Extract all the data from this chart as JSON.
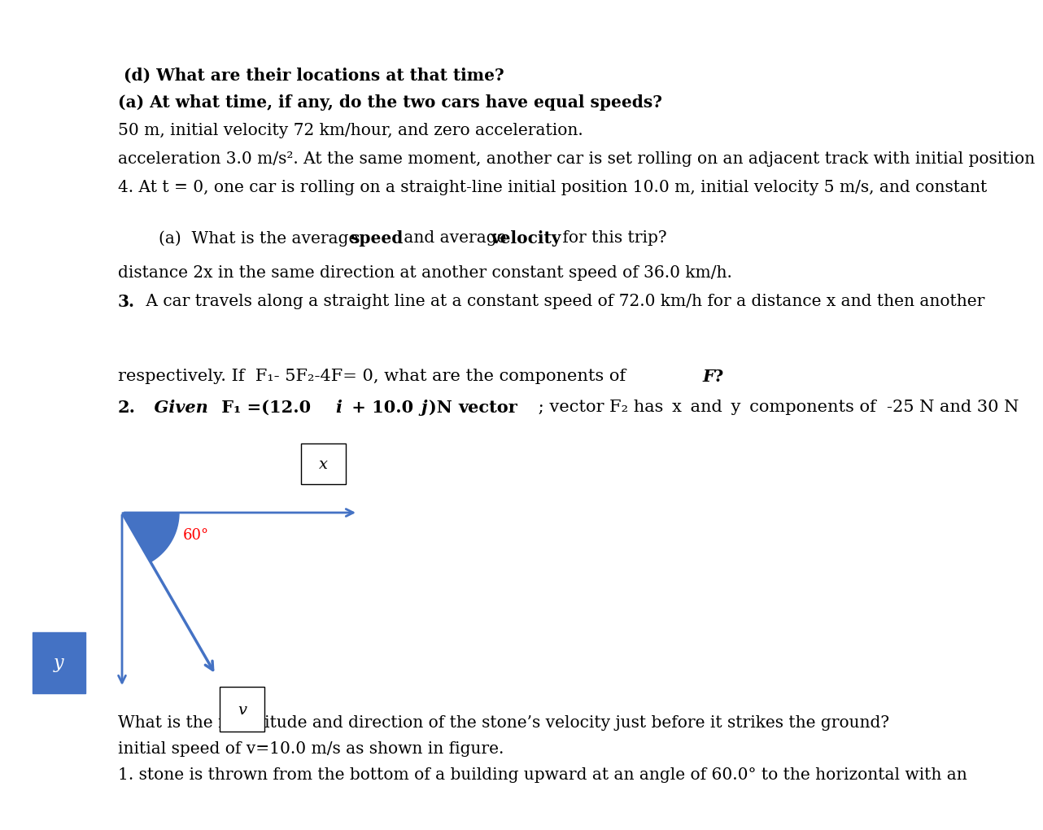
{
  "background_color": "#ffffff",
  "fig_width": 12.0,
  "fig_height": 10.01,
  "dpi": 100,
  "arrow_color": "#4472c4",
  "y_label_box_color": "#4472c4",
  "y_label_text_color": "#ffffff",
  "angle_label_color": "#ff0000",
  "q1_line1": "1. stone is thrown from the bottom of a building upward at an angle of 60.0° to the horizontal with an",
  "q1_line2": "initial speed of v=10.0 m/s as shown in figure.",
  "q1_line3": "What is the magnitude and direction of the stone’s velocity just before it strikes the ground?",
  "q2_line1_pre": "2.  ",
  "q2_line1_given": "Given ",
  "q2_line1_formula": "F₁ =(12.0 i + 10.0 j)N",
  "q2_line1_vector": " vector",
  "q2_line1_rest": " ; vector F₂ has x and y components of  -25 N and 30 N",
  "q2_line2_pre": "respectively. If  F₁- 5F₂-4F= 0, what are the components of ",
  "q2_line2_bold": "F",
  "q2_line2_post": "?",
  "q3_line1_num": "3.",
  "q3_line1_rest": " A car travels along a straight line at a constant speed of 72.0 km/h for a distance x and then another",
  "q3_line2": "distance 2x in the same direction at another constant speed of 36.0 km/h.",
  "q3_line3_pre": "    (a)  What is the average ",
  "q3_line3_speed": "speed",
  "q3_line3_mid": " and average ",
  "q3_line3_vel": "velocity",
  "q3_line3_post": " for this trip?",
  "q4_line1": "4. At t = 0, one car is rolling on a straight-line initial position 10.0 m, initial velocity 5 m/s, and constant",
  "q4_line2": "acceleration 3.0 m/s². At the same moment, another car is set rolling on an adjacent track with initial position",
  "q4_line3": "50 m, initial velocity 72 km/hour, and zero acceleration.",
  "q4_line4": "(a) At what time, if any, do the two cars have equal speeds?",
  "q4_line5": " (d) What are their locations at that time?"
}
